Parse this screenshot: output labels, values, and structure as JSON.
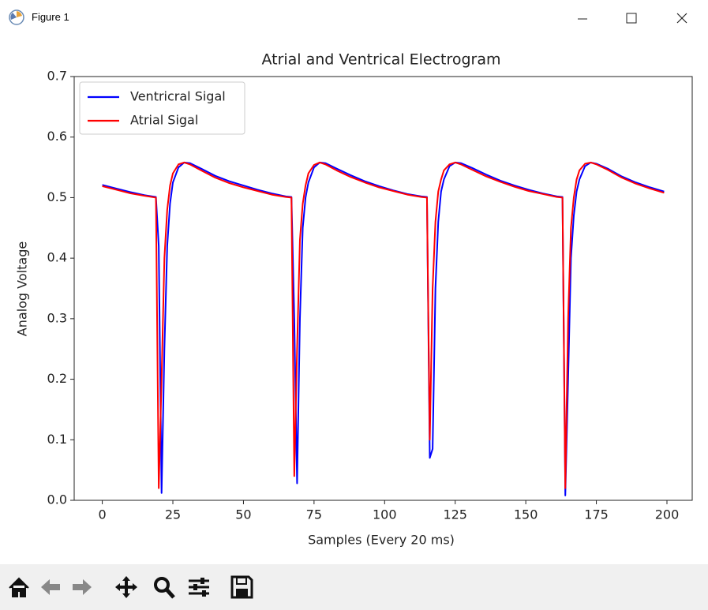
{
  "window": {
    "title": "Figure 1"
  },
  "chart_data": {
    "type": "line",
    "title": "Atrial and Ventrical Electrogram",
    "x_label": "Samples (Every 20 ms)",
    "y_label": "Analog Voltage",
    "x": [
      0,
      5,
      10,
      15,
      19,
      20,
      21,
      22,
      23,
      24,
      25,
      27,
      29,
      31,
      35,
      40,
      45,
      50,
      55,
      60,
      65,
      67,
      68,
      69,
      70,
      71,
      72,
      73,
      75,
      77,
      79,
      83,
      88,
      93,
      98,
      103,
      108,
      113,
      115,
      116,
      117,
      118,
      119,
      120,
      121,
      123,
      125,
      127,
      131,
      136,
      141,
      146,
      151,
      156,
      161,
      163,
      164,
      165,
      166,
      167,
      168,
      169,
      171,
      173,
      175,
      179,
      184,
      189,
      194,
      199
    ],
    "series": [
      {
        "name": "Ventricral Sigal",
        "color": "#0000ff",
        "values": [
          0.521,
          0.515,
          0.509,
          0.504,
          0.501,
          0.42,
          0.012,
          0.25,
          0.42,
          0.49,
          0.525,
          0.55,
          0.558,
          0.557,
          0.548,
          0.536,
          0.527,
          0.52,
          0.513,
          0.507,
          0.502,
          0.501,
          0.3,
          0.028,
          0.3,
          0.45,
          0.5,
          0.525,
          0.55,
          0.558,
          0.557,
          0.548,
          0.537,
          0.527,
          0.519,
          0.512,
          0.506,
          0.502,
          0.501,
          0.07,
          0.085,
          0.35,
          0.46,
          0.51,
          0.53,
          0.552,
          0.558,
          0.557,
          0.549,
          0.538,
          0.528,
          0.52,
          0.513,
          0.507,
          0.502,
          0.501,
          0.008,
          0.2,
          0.4,
          0.47,
          0.51,
          0.53,
          0.552,
          0.558,
          0.556,
          0.548,
          0.535,
          0.525,
          0.517,
          0.51
        ]
      },
      {
        "name": "Atrial Sigal",
        "color": "#ff0000",
        "values": [
          0.519,
          0.513,
          0.507,
          0.503,
          0.5,
          0.02,
          0.2,
          0.4,
          0.48,
          0.52,
          0.54,
          0.555,
          0.558,
          0.555,
          0.545,
          0.533,
          0.524,
          0.517,
          0.511,
          0.505,
          0.501,
          0.5,
          0.04,
          0.25,
          0.43,
          0.49,
          0.52,
          0.54,
          0.554,
          0.558,
          0.555,
          0.545,
          0.534,
          0.525,
          0.517,
          0.511,
          0.505,
          0.501,
          0.5,
          0.1,
          0.35,
          0.46,
          0.51,
          0.53,
          0.545,
          0.555,
          0.558,
          0.555,
          0.546,
          0.535,
          0.526,
          0.518,
          0.511,
          0.506,
          0.501,
          0.5,
          0.02,
          0.3,
          0.45,
          0.5,
          0.53,
          0.545,
          0.556,
          0.558,
          0.555,
          0.546,
          0.533,
          0.523,
          0.515,
          0.508
        ]
      }
    ],
    "xlim": [
      -9.95,
      208.95
    ],
    "ylim": [
      0,
      0.7
    ],
    "xticks": [
      0,
      25,
      50,
      75,
      100,
      125,
      150,
      175,
      200
    ],
    "yticks": [
      {
        "value": 0,
        "label": "0.0"
      },
      0.1,
      0.2,
      0.3,
      0.4,
      0.5,
      0.6,
      0.7
    ],
    "grid": false,
    "legend": "upper left"
  }
}
